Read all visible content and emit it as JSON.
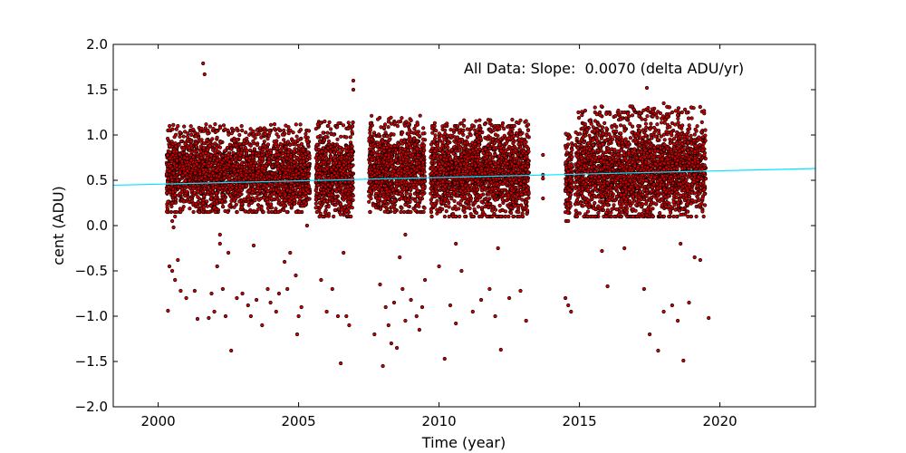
{
  "chart_data": {
    "type": "scatter",
    "title": "",
    "xlabel": "Time (year)",
    "ylabel": "cent (ADU)",
    "xlim": [
      1998.4,
      2023.4
    ],
    "ylim": [
      -2.0,
      2.0
    ],
    "xticks": [
      2000,
      2005,
      2010,
      2015,
      2020
    ],
    "xtick_labels": [
      "2000",
      "2005",
      "2010",
      "2015",
      "2020"
    ],
    "yticks": [
      2.0,
      1.5,
      1.0,
      0.5,
      0.0,
      -0.5,
      -1.0,
      -1.5,
      -2.0
    ],
    "ytick_labels": [
      "2.0",
      "1.5",
      "1.0",
      "0.5",
      "0.0",
      "−0.5",
      "−1.0",
      "−1.5",
      "−2.0"
    ],
    "grid": false,
    "annotation": "All Data: Slope:  0.0070 (delta ADU/yr)",
    "colors": {
      "marker_fill": "#cc0000",
      "marker_edge": "#000000",
      "fit_line": "#00e5ff"
    },
    "fit_line": {
      "x": [
        1998.4,
        2023.4
      ],
      "y": [
        0.445,
        0.63
      ]
    },
    "dense_clusters": [
      {
        "x_range": [
          2000.3,
          2005.4
        ],
        "band": [
          0.2,
          1.0
        ],
        "center": 0.58
      },
      {
        "x_range": [
          2005.6,
          2006.95
        ],
        "band": [
          0.15,
          1.05
        ],
        "center": 0.58
      },
      {
        "x_range": [
          2007.5,
          2009.5
        ],
        "band": [
          0.2,
          1.1
        ],
        "center": 0.62
      },
      {
        "x_range": [
          2009.7,
          2013.2
        ],
        "band": [
          0.15,
          1.05
        ],
        "center": 0.6
      },
      {
        "x_range": [
          2014.5,
          2014.75
        ],
        "band": [
          0.1,
          0.95
        ],
        "center": 0.55
      },
      {
        "x_range": [
          2014.85,
          2019.5
        ],
        "band": [
          0.15,
          1.2
        ],
        "center": 0.62
      }
    ],
    "points": [
      [
        2001.6,
        1.79
      ],
      [
        2001.65,
        1.67
      ],
      [
        2006.95,
        1.6
      ],
      [
        2006.95,
        1.5
      ],
      [
        2017.4,
        1.52
      ],
      [
        2018.0,
        1.35
      ],
      [
        2013.7,
        0.78
      ],
      [
        2013.7,
        0.56
      ],
      [
        2013.7,
        0.52
      ],
      [
        2013.7,
        0.3
      ],
      [
        2000.4,
        -0.45
      ],
      [
        2000.5,
        -0.5
      ],
      [
        2000.6,
        -0.6
      ],
      [
        2000.35,
        -0.94
      ],
      [
        2000.7,
        -0.38
      ],
      [
        2000.8,
        -0.72
      ],
      [
        2001.0,
        -0.8
      ],
      [
        2001.3,
        -0.72
      ],
      [
        2001.4,
        -1.03
      ],
      [
        2001.8,
        -1.02
      ],
      [
        2001.9,
        -0.75
      ],
      [
        2002.0,
        -0.95
      ],
      [
        2002.1,
        -0.45
      ],
      [
        2002.2,
        -0.2
      ],
      [
        2002.3,
        -0.7
      ],
      [
        2002.4,
        -1.0
      ],
      [
        2002.5,
        -0.3
      ],
      [
        2002.6,
        -1.38
      ],
      [
        2002.8,
        -0.8
      ],
      [
        2003.0,
        -0.75
      ],
      [
        2003.2,
        -0.88
      ],
      [
        2003.3,
        -1.0
      ],
      [
        2003.5,
        -0.82
      ],
      [
        2003.7,
        -1.1
      ],
      [
        2003.9,
        -0.7
      ],
      [
        2004.0,
        -0.85
      ],
      [
        2004.2,
        -0.95
      ],
      [
        2004.3,
        -0.75
      ],
      [
        2004.5,
        -0.4
      ],
      [
        2004.6,
        -0.7
      ],
      [
        2004.7,
        -0.3
      ],
      [
        2004.9,
        -0.55
      ],
      [
        2005.0,
        -1.0
      ],
      [
        2005.1,
        -0.9
      ],
      [
        2004.95,
        -1.2
      ],
      [
        2005.8,
        -0.6
      ],
      [
        2006.0,
        -0.95
      ],
      [
        2006.2,
        -0.7
      ],
      [
        2006.4,
        -1.0
      ],
      [
        2006.5,
        -1.52
      ],
      [
        2006.6,
        -0.3
      ],
      [
        2006.7,
        -1.0
      ],
      [
        2006.8,
        -1.1
      ],
      [
        2007.7,
        -1.2
      ],
      [
        2007.9,
        -0.65
      ],
      [
        2008.0,
        -1.55
      ],
      [
        2008.1,
        -0.9
      ],
      [
        2008.2,
        -1.1
      ],
      [
        2008.3,
        -1.3
      ],
      [
        2008.4,
        -0.85
      ],
      [
        2008.5,
        -1.35
      ],
      [
        2008.6,
        -0.35
      ],
      [
        2008.7,
        -0.7
      ],
      [
        2008.8,
        -1.05
      ],
      [
        2009.0,
        -0.82
      ],
      [
        2009.2,
        -1.0
      ],
      [
        2009.3,
        -1.15
      ],
      [
        2009.4,
        -0.9
      ],
      [
        2009.5,
        -0.6
      ],
      [
        2010.0,
        -0.45
      ],
      [
        2010.2,
        -1.47
      ],
      [
        2010.4,
        -0.88
      ],
      [
        2010.6,
        -1.08
      ],
      [
        2010.8,
        -0.5
      ],
      [
        2011.2,
        -0.95
      ],
      [
        2011.5,
        -0.82
      ],
      [
        2011.8,
        -0.7
      ],
      [
        2012.0,
        -1.0
      ],
      [
        2012.2,
        -1.37
      ],
      [
        2012.5,
        -0.8
      ],
      [
        2012.9,
        -0.72
      ],
      [
        2013.1,
        -1.05
      ],
      [
        2014.5,
        -0.8
      ],
      [
        2014.6,
        -0.88
      ],
      [
        2014.7,
        -0.95
      ],
      [
        2015.8,
        -0.28
      ],
      [
        2016.0,
        -0.67
      ],
      [
        2016.6,
        -0.25
      ],
      [
        2017.3,
        -0.7
      ],
      [
        2017.5,
        -1.2
      ],
      [
        2017.8,
        -1.38
      ],
      [
        2018.0,
        -0.95
      ],
      [
        2018.3,
        -0.88
      ],
      [
        2018.5,
        -1.05
      ],
      [
        2018.7,
        -1.49
      ],
      [
        2018.9,
        -0.85
      ],
      [
        2019.3,
        -0.38
      ],
      [
        2019.6,
        -1.02
      ],
      [
        2019.1,
        -0.35
      ],
      [
        2018.6,
        -0.2
      ],
      [
        2000.5,
        0.05
      ],
      [
        2000.55,
        -0.02
      ],
      [
        2000.6,
        0.1
      ],
      [
        2002.2,
        -0.1
      ],
      [
        2003.4,
        -0.22
      ],
      [
        2005.3,
        0.0
      ],
      [
        2008.8,
        -0.1
      ],
      [
        2010.6,
        -0.2
      ],
      [
        2012.1,
        -0.25
      ],
      [
        2014.6,
        0.05
      ]
    ]
  }
}
